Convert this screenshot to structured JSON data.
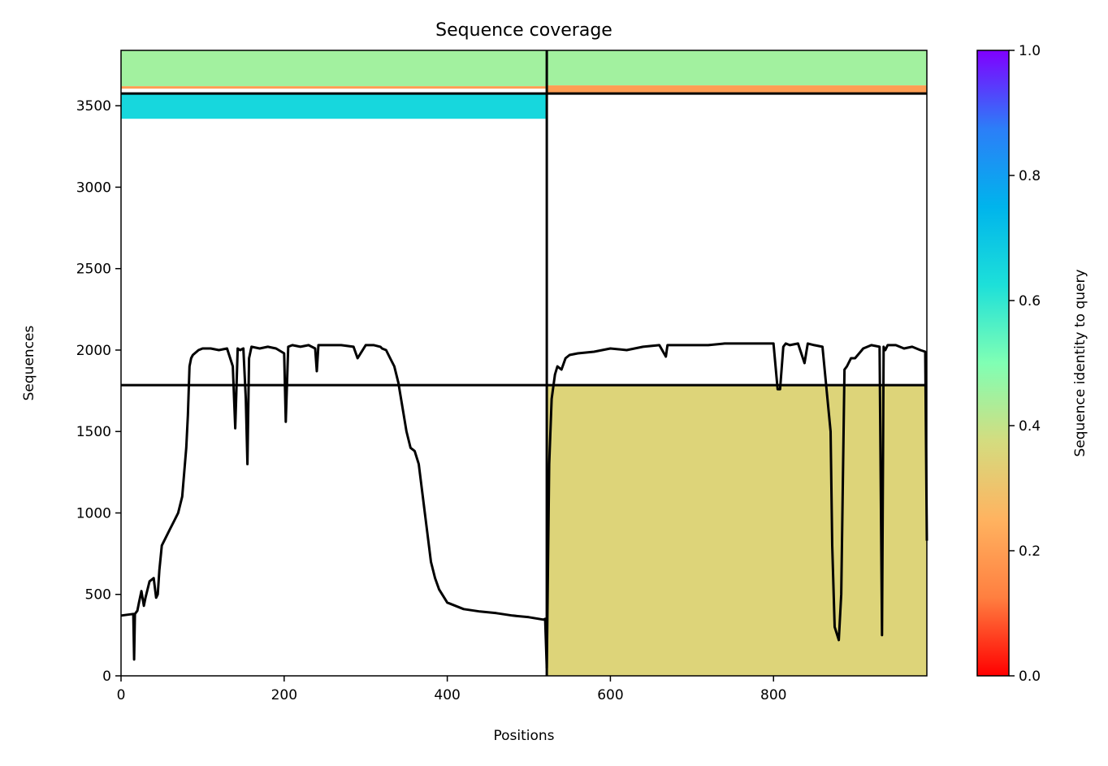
{
  "chart_data": {
    "type": "heatmap",
    "title": "Sequence coverage",
    "xlabel": "Positions",
    "ylabel": "Sequences",
    "xlim": [
      0,
      988
    ],
    "ylim": [
      0,
      3840
    ],
    "x_ticks": [
      0,
      200,
      400,
      600,
      800
    ],
    "y_ticks": [
      0,
      500,
      1000,
      1500,
      2000,
      2500,
      3000,
      3500
    ],
    "grid": false,
    "colorbar": {
      "label": "Sequence identity to query",
      "colormap": "rainbow",
      "range": [
        0,
        1
      ],
      "ticks": [
        "0.0",
        "0.2",
        "0.4",
        "0.6",
        "0.8",
        "1.0"
      ],
      "stops": [
        "#ff0000",
        "#ff7f40",
        "#ffb360",
        "#d4dc7f",
        "#80ffb4",
        "#1de0d9",
        "#00b4ec",
        "#2c7ef8",
        "#8000ff"
      ]
    },
    "divider_lines": {
      "vertical_x": [
        522
      ],
      "horizontal_y": [
        1785,
        3575
      ]
    },
    "coverage_blocks": [
      {
        "x": [
          0,
          522
        ],
        "y": [
          3620,
          3840
        ],
        "identity": 0.45
      },
      {
        "x": [
          0,
          522
        ],
        "y": [
          3605,
          3620
        ],
        "identity": 0.2
      },
      {
        "x": [
          0,
          522
        ],
        "y": [
          3420,
          3575
        ],
        "identity": 0.65
      },
      {
        "x": [
          522,
          988
        ],
        "y": [
          3625,
          3840
        ],
        "identity": 0.45
      },
      {
        "x": [
          522,
          988
        ],
        "y": [
          3575,
          3625
        ],
        "identity": 0.2
      },
      {
        "x": [
          522,
          988
        ],
        "y": [
          0,
          1785
        ],
        "identity": 0.35
      }
    ],
    "coverage_line": {
      "name": "coverage",
      "x": [
        0,
        15,
        16,
        17,
        20,
        22,
        25,
        28,
        30,
        35,
        40,
        43,
        45,
        47,
        50,
        55,
        60,
        65,
        70,
        75,
        80,
        82,
        84,
        86,
        88,
        95,
        100,
        110,
        120,
        130,
        137,
        140,
        143,
        146,
        150,
        153,
        155,
        157,
        160,
        170,
        180,
        190,
        200,
        202,
        205,
        210,
        220,
        230,
        238,
        240,
        242,
        250,
        270,
        285,
        290,
        300,
        310,
        318,
        320,
        325,
        330,
        335,
        340,
        345,
        350,
        355,
        360,
        365,
        370,
        375,
        380,
        385,
        390,
        400,
        420,
        440,
        460,
        480,
        500,
        518,
        520,
        522,
        525,
        528,
        532,
        535,
        540,
        545,
        550,
        560,
        580,
        600,
        620,
        640,
        660,
        668,
        670,
        680,
        700,
        720,
        740,
        760,
        780,
        800,
        805,
        808,
        812,
        815,
        820,
        830,
        838,
        842,
        850,
        860,
        870,
        872,
        875,
        880,
        883,
        887,
        890,
        895,
        900,
        905,
        910,
        920,
        930,
        933,
        935,
        937,
        940,
        950,
        960,
        970,
        980,
        986,
        988
      ],
      "y": [
        370,
        380,
        100,
        380,
        400,
        450,
        520,
        430,
        480,
        580,
        600,
        480,
        500,
        650,
        800,
        850,
        900,
        950,
        1000,
        1100,
        1400,
        1600,
        1900,
        1950,
        1970,
        2000,
        2010,
        2010,
        2000,
        2010,
        1900,
        1520,
        2010,
        2000,
        2010,
        1700,
        1300,
        1950,
        2020,
        2010,
        2020,
        2010,
        1980,
        1560,
        2020,
        2030,
        2020,
        2030,
        2010,
        1870,
        2030,
        2030,
        2030,
        2020,
        1950,
        2030,
        2030,
        2020,
        2010,
        2000,
        1950,
        1900,
        1800,
        1650,
        1500,
        1400,
        1380,
        1300,
        1100,
        900,
        700,
        600,
        530,
        450,
        410,
        395,
        385,
        370,
        360,
        345,
        350,
        50,
        1300,
        1700,
        1850,
        1900,
        1880,
        1950,
        1970,
        1980,
        1990,
        2010,
        2000,
        2020,
        2030,
        1960,
        2030,
        2030,
        2030,
        2030,
        2040,
        2040,
        2040,
        2040,
        1760,
        1760,
        2020,
        2040,
        2030,
        2040,
        1920,
        2040,
        2030,
        2020,
        1500,
        800,
        300,
        220,
        500,
        1880,
        1900,
        1950,
        1950,
        1980,
        2010,
        2030,
        2020,
        250,
        2020,
        2000,
        2030,
        2030,
        2010,
        2020,
        2000,
        1990,
        830
      ]
    }
  }
}
